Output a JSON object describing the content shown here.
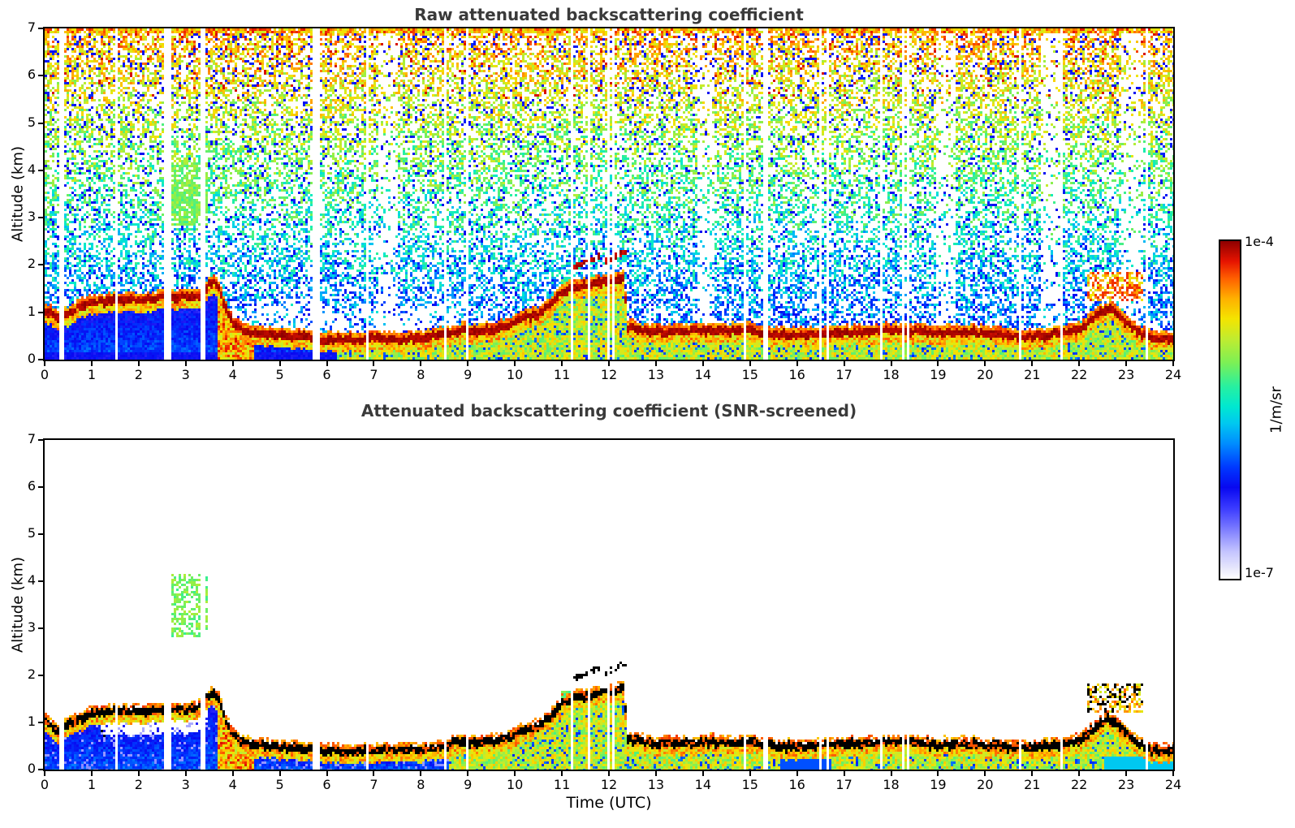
{
  "titles": {
    "top": "Raw attenuated backscattering coefficient",
    "bottom": "Attenuated backscattering coefficient (SNR-screened)"
  },
  "axis_labels": {
    "y": "Altitude (km)",
    "x": "Time (UTC)"
  },
  "colorbar": {
    "top_label": "1e-4",
    "bottom_label": "1e-7",
    "unit": "1/m/sr",
    "stops": [
      [
        0.0,
        "#ffffff"
      ],
      [
        0.03,
        "#e8e8fc"
      ],
      [
        0.08,
        "#c4c4ff"
      ],
      [
        0.12,
        "#9a9aff"
      ],
      [
        0.16,
        "#6e6eff"
      ],
      [
        0.21,
        "#3a3aff"
      ],
      [
        0.27,
        "#0808f0"
      ],
      [
        0.33,
        "#0038ff"
      ],
      [
        0.4,
        "#008cff"
      ],
      [
        0.46,
        "#00c8f0"
      ],
      [
        0.51,
        "#00e8d0"
      ],
      [
        0.57,
        "#28f0a0"
      ],
      [
        0.64,
        "#7cf055"
      ],
      [
        0.71,
        "#c0ec30"
      ],
      [
        0.77,
        "#f4e400"
      ],
      [
        0.83,
        "#ffb000"
      ],
      [
        0.89,
        "#ff5f00"
      ],
      [
        0.94,
        "#e61300"
      ],
      [
        1.0,
        "#8d0000"
      ]
    ]
  },
  "chart_data": [
    {
      "type": "heatmap",
      "title": "Raw attenuated backscattering coefficient",
      "xlabel": "",
      "ylabel": "Altitude (km)",
      "xlim": [
        0,
        24
      ],
      "ylim": [
        0,
        7
      ],
      "xticks": [
        0,
        1,
        2,
        3,
        4,
        5,
        6,
        7,
        8,
        9,
        10,
        11,
        12,
        13,
        14,
        15,
        16,
        17,
        18,
        19,
        20,
        21,
        22,
        23,
        24
      ],
      "yticks": [
        0,
        1,
        2,
        3,
        4,
        5,
        6,
        7
      ],
      "value_range": {
        "min": "1e-7",
        "max": "1e-4",
        "units": "1/m/sr"
      },
      "seed": 1337,
      "noise": {
        "enabled": true,
        "density_top": 0.6,
        "density_bottom": 0.34,
        "low_alt_boost": 1.3,
        "top_band_alt": 6.9
      },
      "peak_style": "darkred",
      "underfill_blue_until": 6.2,
      "main_layer": [
        [
          0,
          1.05
        ],
        [
          0.3,
          0.85
        ],
        [
          0.7,
          1.1
        ],
        [
          1.0,
          1.2
        ],
        [
          1.5,
          1.28
        ],
        [
          2.0,
          1.25
        ],
        [
          2.5,
          1.3
        ],
        [
          3.0,
          1.32
        ],
        [
          3.3,
          1.35
        ],
        [
          3.55,
          1.65
        ],
        [
          3.7,
          1.5
        ],
        [
          3.85,
          1.05
        ],
        [
          4.0,
          0.75
        ],
        [
          4.3,
          0.58
        ],
        [
          5.0,
          0.5
        ],
        [
          5.5,
          0.48
        ],
        [
          6.0,
          0.42
        ],
        [
          6.5,
          0.42
        ],
        [
          7.0,
          0.45
        ],
        [
          7.5,
          0.43
        ],
        [
          8.0,
          0.45
        ],
        [
          8.5,
          0.52
        ],
        [
          8.8,
          0.62
        ],
        [
          9.2,
          0.6
        ],
        [
          9.6,
          0.65
        ],
        [
          9.9,
          0.75
        ],
        [
          10.2,
          0.9
        ],
        [
          10.5,
          0.95
        ],
        [
          10.8,
          1.2
        ],
        [
          11.0,
          1.45
        ],
        [
          11.3,
          1.55
        ],
        [
          11.7,
          1.62
        ],
        [
          12.0,
          1.68
        ],
        [
          12.3,
          1.75
        ],
        [
          12.38,
          0.68
        ],
        [
          12.8,
          0.6
        ],
        [
          13.5,
          0.58
        ],
        [
          14.0,
          0.62
        ],
        [
          14.5,
          0.6
        ],
        [
          15.0,
          0.62
        ],
        [
          15.3,
          0.55
        ],
        [
          16.0,
          0.5
        ],
        [
          16.5,
          0.55
        ],
        [
          17.0,
          0.55
        ],
        [
          17.5,
          0.6
        ],
        [
          18.0,
          0.62
        ],
        [
          18.5,
          0.6
        ],
        [
          19.0,
          0.55
        ],
        [
          19.5,
          0.58
        ],
        [
          20.0,
          0.55
        ],
        [
          20.5,
          0.5
        ],
        [
          21.0,
          0.48
        ],
        [
          21.5,
          0.55
        ],
        [
          22.0,
          0.65
        ],
        [
          22.3,
          0.9
        ],
        [
          22.6,
          1.1
        ],
        [
          22.9,
          0.85
        ],
        [
          23.2,
          0.6
        ],
        [
          23.5,
          0.45
        ],
        [
          24,
          0.42
        ]
      ],
      "features": {
        "gaps": [
          [
            0.33,
            0.4
          ],
          [
            1.48,
            1.54
          ],
          [
            2.52,
            2.68
          ],
          [
            3.32,
            3.4
          ],
          [
            5.7,
            5.85
          ],
          [
            6.83,
            6.89
          ],
          [
            8.5,
            8.56
          ],
          [
            8.93,
            8.99
          ],
          [
            11.18,
            11.24
          ],
          [
            11.53,
            11.59
          ],
          [
            11.93,
            11.99
          ],
          [
            12.04,
            12.1
          ],
          [
            14.84,
            14.9
          ],
          [
            15.28,
            15.34
          ],
          [
            16.43,
            16.49
          ],
          [
            16.58,
            16.64
          ],
          [
            17.74,
            17.8
          ],
          [
            18.19,
            18.25
          ],
          [
            18.31,
            18.37
          ],
          [
            20.68,
            20.74
          ],
          [
            21.57,
            21.63
          ],
          [
            23.37,
            23.43
          ]
        ],
        "light_bands": [
          [
            7.1,
            7.5
          ],
          [
            13.85,
            14.2
          ],
          [
            18.95,
            19.35
          ],
          [
            21.15,
            21.55
          ],
          [
            22.85,
            23.35
          ]
        ],
        "cloud_patch": {
          "t": [
            2.6,
            3.45
          ],
          "alt": [
            2.85,
            4.15
          ],
          "density": 0.8
        },
        "column": {
          "t": [
            10.95,
            12.33
          ],
          "alt": [
            0,
            1.72
          ],
          "cyan_band": [
            0.78,
            0.9
          ]
        },
        "streaks": [
          [
            11.25,
            1.95,
            11.8,
            2.2
          ],
          [
            11.9,
            2.08,
            12.38,
            2.3
          ]
        ],
        "high_patch": {
          "t": [
            22.15,
            23.35
          ],
          "alt": [
            1.25,
            1.85
          ],
          "density": 0.55
        },
        "specks": {
          "t": [
            0.05,
            1.35
          ],
          "alt": [
            0.35,
            0.9
          ],
          "density": 0.35
        },
        "warm_plume": {
          "t": [
            3.65,
            4.45
          ]
        }
      }
    },
    {
      "type": "heatmap",
      "title": "Attenuated backscattering coefficient (SNR-screened)",
      "xlabel": "Time (UTC)",
      "ylabel": "Altitude (km)",
      "xlim": [
        0,
        24
      ],
      "ylim": [
        0,
        7
      ],
      "xticks": [
        0,
        1,
        2,
        3,
        4,
        5,
        6,
        7,
        8,
        9,
        10,
        11,
        12,
        13,
        14,
        15,
        16,
        17,
        18,
        19,
        20,
        21,
        22,
        23,
        24
      ],
      "yticks": [
        0,
        1,
        2,
        3,
        4,
        5,
        6,
        7
      ],
      "value_range": {
        "min": "1e-7",
        "max": "1e-4",
        "units": "1/m/sr"
      },
      "seed": 7331,
      "noise": {
        "enabled": false
      },
      "peak_style": "black",
      "underfill_blue_until": 8.6,
      "main_layer": [
        [
          0,
          1.05
        ],
        [
          0.3,
          0.85
        ],
        [
          0.7,
          1.1
        ],
        [
          1.0,
          1.2
        ],
        [
          1.5,
          1.28
        ],
        [
          2.0,
          1.25
        ],
        [
          2.5,
          1.3
        ],
        [
          3.0,
          1.32
        ],
        [
          3.3,
          1.35
        ],
        [
          3.55,
          1.65
        ],
        [
          3.7,
          1.5
        ],
        [
          3.85,
          1.05
        ],
        [
          4.0,
          0.75
        ],
        [
          4.3,
          0.58
        ],
        [
          5.0,
          0.5
        ],
        [
          5.5,
          0.48
        ],
        [
          6.0,
          0.42
        ],
        [
          6.5,
          0.42
        ],
        [
          7.0,
          0.45
        ],
        [
          7.5,
          0.43
        ],
        [
          8.0,
          0.45
        ],
        [
          8.5,
          0.52
        ],
        [
          8.8,
          0.62
        ],
        [
          9.2,
          0.6
        ],
        [
          9.6,
          0.65
        ],
        [
          9.9,
          0.75
        ],
        [
          10.2,
          0.9
        ],
        [
          10.5,
          0.95
        ],
        [
          10.8,
          1.2
        ],
        [
          11.0,
          1.45
        ],
        [
          11.3,
          1.55
        ],
        [
          11.7,
          1.62
        ],
        [
          12.0,
          1.68
        ],
        [
          12.3,
          1.75
        ],
        [
          12.38,
          0.68
        ],
        [
          12.8,
          0.6
        ],
        [
          13.5,
          0.58
        ],
        [
          14.0,
          0.62
        ],
        [
          14.5,
          0.6
        ],
        [
          15.0,
          0.62
        ],
        [
          15.3,
          0.55
        ],
        [
          16.0,
          0.5
        ],
        [
          16.5,
          0.55
        ],
        [
          17.0,
          0.55
        ],
        [
          17.5,
          0.6
        ],
        [
          18.0,
          0.62
        ],
        [
          18.5,
          0.6
        ],
        [
          19.0,
          0.55
        ],
        [
          19.5,
          0.58
        ],
        [
          20.0,
          0.55
        ],
        [
          20.5,
          0.5
        ],
        [
          21.0,
          0.48
        ],
        [
          21.5,
          0.55
        ],
        [
          22.0,
          0.65
        ],
        [
          22.3,
          0.9
        ],
        [
          22.6,
          1.1
        ],
        [
          22.9,
          0.85
        ],
        [
          23.2,
          0.6
        ],
        [
          23.5,
          0.45
        ],
        [
          24,
          0.42
        ]
      ],
      "features": {
        "gaps": [
          [
            0.33,
            0.4
          ],
          [
            1.48,
            1.54
          ],
          [
            2.52,
            2.68
          ],
          [
            3.32,
            3.4
          ],
          [
            5.7,
            5.85
          ],
          [
            6.83,
            6.89
          ],
          [
            8.5,
            8.56
          ],
          [
            8.93,
            8.99
          ],
          [
            11.18,
            11.24
          ],
          [
            11.53,
            11.59
          ],
          [
            11.93,
            11.99
          ],
          [
            12.04,
            12.1
          ],
          [
            14.84,
            14.9
          ],
          [
            15.28,
            15.34
          ],
          [
            16.43,
            16.49
          ],
          [
            16.58,
            16.64
          ],
          [
            17.74,
            17.8
          ],
          [
            18.19,
            18.25
          ],
          [
            18.31,
            18.37
          ],
          [
            20.68,
            20.74
          ],
          [
            21.57,
            21.63
          ],
          [
            23.37,
            23.43
          ]
        ],
        "light_bands": [],
        "cloud_patch": {
          "t": [
            2.6,
            3.45
          ],
          "alt": [
            2.85,
            4.15
          ],
          "density": 0.55
        },
        "column": {
          "t": [
            10.95,
            12.33
          ],
          "alt": [
            0,
            1.72
          ],
          "cyan_band": [
            0.78,
            0.9
          ]
        },
        "streaks": [
          [
            11.25,
            1.95,
            11.8,
            2.2
          ],
          [
            11.9,
            2.08,
            12.38,
            2.3
          ]
        ],
        "high_patch": {
          "t": [
            22.15,
            23.35
          ],
          "alt": [
            1.25,
            1.85
          ],
          "density": 0.55
        },
        "specks": {
          "t": [
            0.05,
            1.35
          ],
          "alt": [
            0.35,
            0.9
          ],
          "density": 0.45
        },
        "warm_plume": {
          "t": [
            3.65,
            4.45
          ]
        }
      }
    }
  ],
  "layout_note": "two stacked time-height heatmaps sharing x axis 0-24 UTC"
}
